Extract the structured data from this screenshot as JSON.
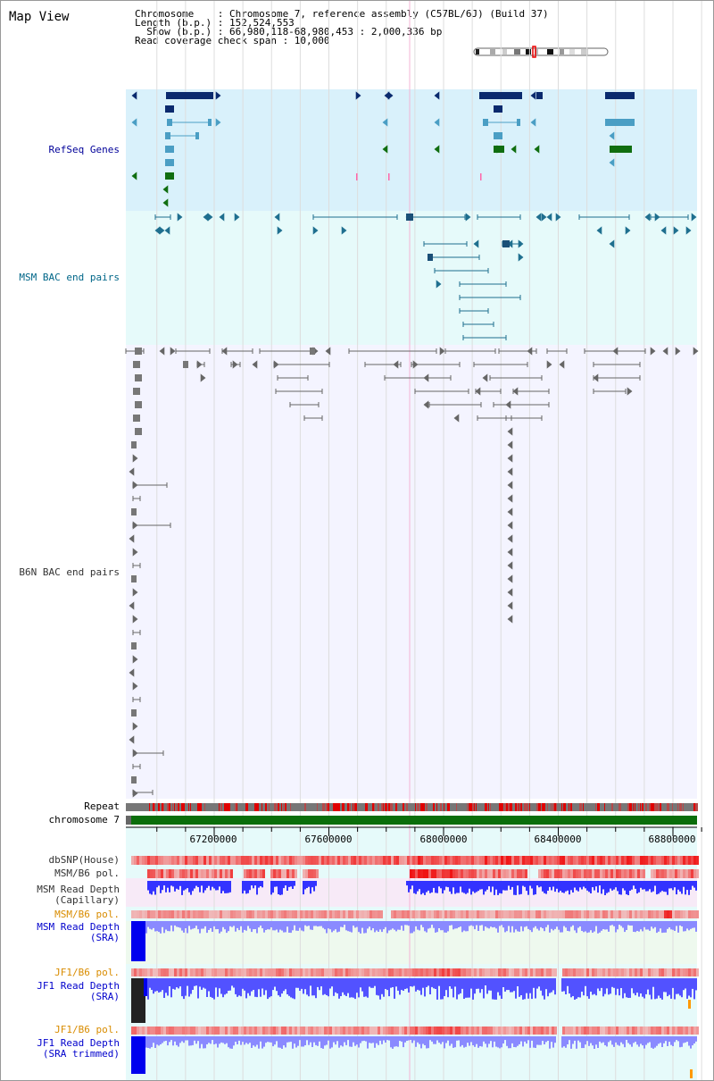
{
  "header": {
    "title": "Map View",
    "chromosome_line": "Chromosome    : Chromosome 7, reference assembly (C57BL/6J) (Build 37)",
    "length_line": "Length (b.p.) : 152,524,553",
    "show_line": "  Show (b.p.) : 66,980,118-68,980,453 : 2,000,336 bp",
    "coverage_line": "Read coverage check span : 10,000"
  },
  "tracks": {
    "refseq": "RefSeq Genes",
    "msm_bac": "MSM BAC end pairs",
    "b6n_bac": "B6N BAC end pairs",
    "repeat": "Repeat",
    "chromosome": "chromosome 7",
    "dbsnp": "dbSNP(House)",
    "msm_b6_pol_1": "MSM/B6 pol.",
    "msm_read_depth_cap": "MSM Read Depth\n(Capillary)",
    "msm_b6_pol_2": "MSM/B6 pol.",
    "msm_read_depth_sra": "MSM Read Depth\n(SRA)",
    "jf1_b6_pol_1": "JF1/B6 pol.",
    "jf1_read_depth_sra": "JF1 Read Depth\n(SRA)",
    "jf1_b6_pol_2": "JF1/B6 pol.",
    "jf1_read_depth_trimmed": "JF1 Read Depth\n(SRA trimmed)"
  },
  "axis": {
    "range": [
      66980118,
      68980453
    ],
    "ticks": [
      {
        "value": 67200000,
        "label": "67200000"
      },
      {
        "value": 67600000,
        "label": "67600000"
      },
      {
        "value": 68000000,
        "label": "68000000"
      },
      {
        "value": 68400000,
        "label": "68400000"
      },
      {
        "value": 68800000,
        "label": "68800000"
      }
    ]
  },
  "colors": {
    "refseq_bg": "#d9f1fb",
    "msm_bg": "#e6fafa",
    "b6n_bg": "#f4f4ff",
    "gene_navy": "#0a2a6e",
    "gene_teal": "#4a9ec4",
    "gene_green": "#106e10",
    "msm_pair": "#1f6f8f",
    "b6n_pair": "#666666",
    "chromosome_bar": "#0b6e0b",
    "depth_blue": "#3333ff",
    "pol_red": "#ee2222"
  }
}
